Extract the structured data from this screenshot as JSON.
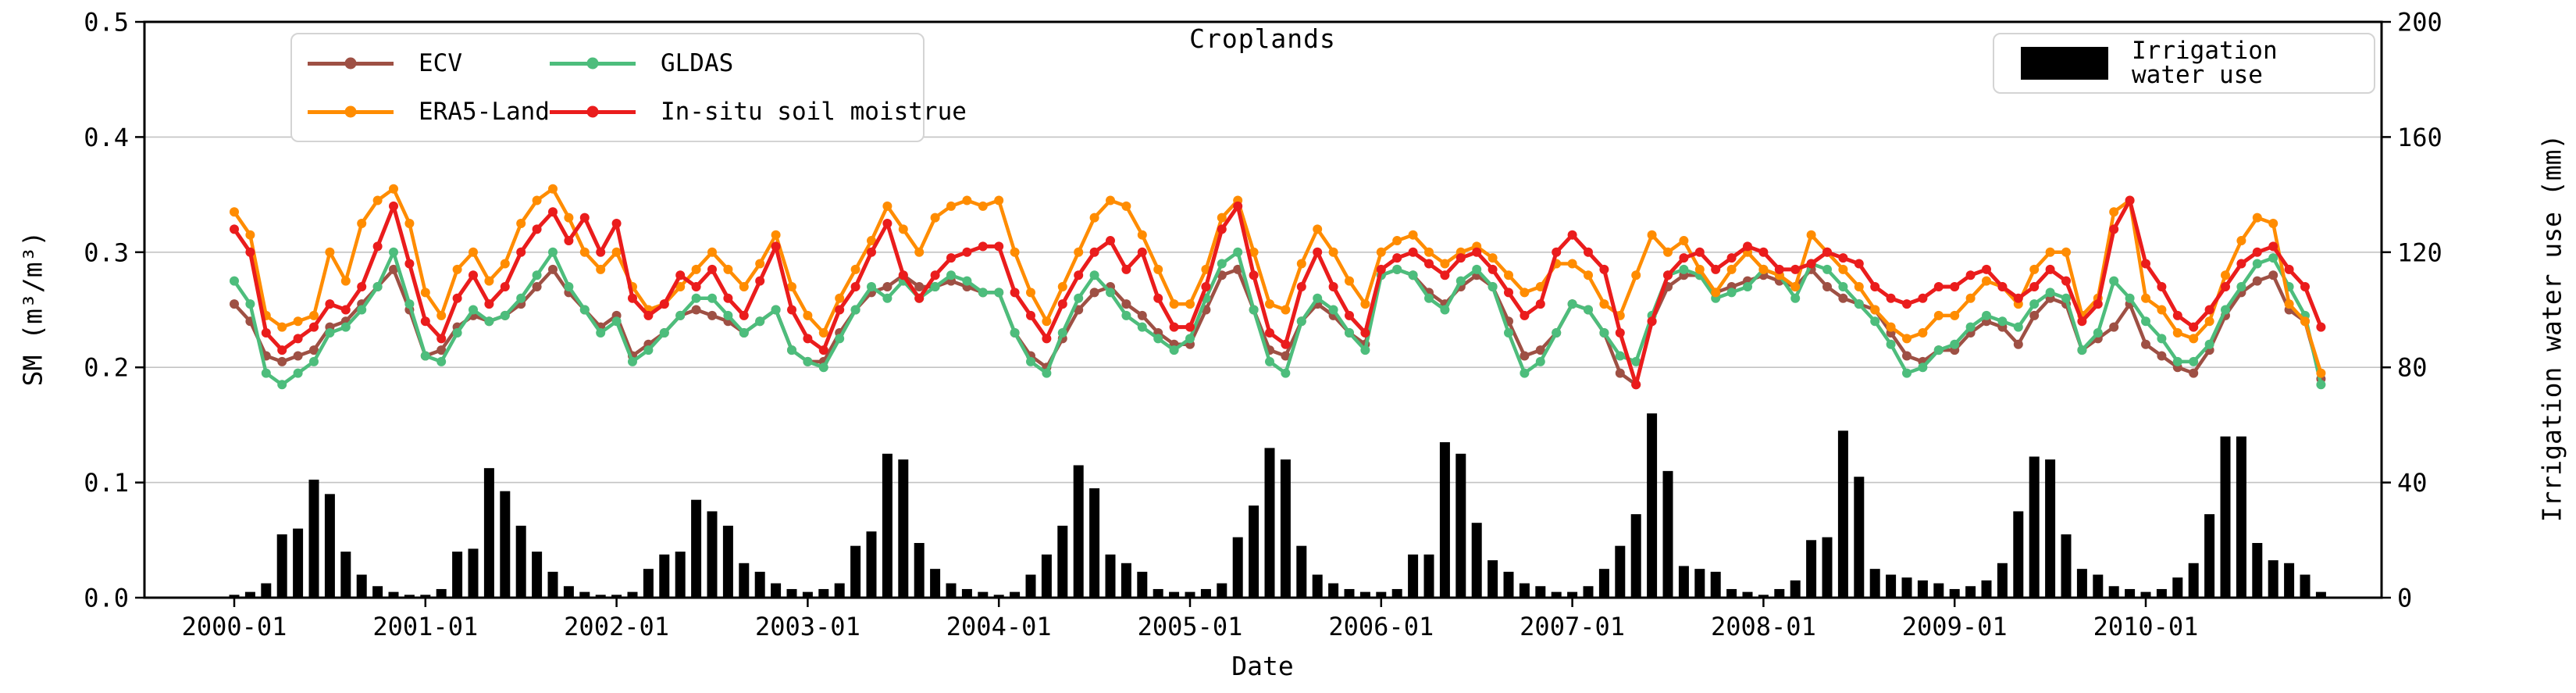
{
  "chart_data": {
    "type": "line+bar",
    "title": "Croplands",
    "x_label": "Date",
    "y_left": {
      "label": "SM (m³/m³)",
      "min": 0.0,
      "max": 0.5,
      "ticks": [
        0.0,
        0.1,
        0.2,
        0.3,
        0.4,
        0.5
      ],
      "tick_labels": [
        "0.0",
        "0.1",
        "0.2",
        "0.3",
        "0.4",
        "0.5"
      ]
    },
    "y_right": {
      "label": "Irrigation water use (mm)",
      "min": 0,
      "max": 200,
      "ticks": [
        0,
        40,
        80,
        120,
        160,
        200
      ],
      "tick_labels": [
        "0",
        "40",
        "80",
        "120",
        "160",
        "200"
      ]
    },
    "x_ticks": {
      "months": [
        0,
        12,
        24,
        36,
        48,
        60,
        72,
        84,
        96,
        108,
        120
      ],
      "labels": [
        "2000-01",
        "2001-01",
        "2002-01",
        "2003-01",
        "2004-01",
        "2005-01",
        "2006-01",
        "2007-01",
        "2008-01",
        "2009-01",
        "2010-01"
      ]
    },
    "n_months": 132,
    "grid": "horizontal",
    "series": [
      {
        "name": "ECV",
        "color": "#9e5044",
        "values": [
          0.255,
          0.24,
          0.21,
          0.205,
          0.21,
          0.215,
          0.235,
          0.24,
          0.255,
          0.27,
          0.285,
          0.25,
          0.21,
          0.215,
          0.235,
          0.245,
          0.24,
          0.245,
          0.255,
          0.27,
          0.285,
          0.265,
          0.25,
          0.235,
          0.245,
          0.21,
          0.22,
          0.23,
          0.245,
          0.25,
          0.245,
          0.24,
          0.23,
          0.24,
          0.25,
          0.215,
          0.205,
          0.205,
          0.23,
          0.25,
          0.265,
          0.27,
          0.28,
          0.27,
          0.27,
          0.275,
          0.27,
          0.265,
          0.265,
          0.23,
          0.21,
          0.2,
          0.225,
          0.25,
          0.265,
          0.27,
          0.255,
          0.245,
          0.23,
          0.22,
          0.22,
          0.25,
          0.28,
          0.285,
          0.25,
          0.215,
          0.21,
          0.24,
          0.255,
          0.245,
          0.23,
          0.22,
          0.28,
          0.285,
          0.28,
          0.265,
          0.255,
          0.27,
          0.28,
          0.27,
          0.24,
          0.21,
          0.215,
          0.23,
          0.255,
          0.25,
          0.23,
          0.195,
          0.185,
          0.24,
          0.27,
          0.28,
          0.28,
          0.265,
          0.27,
          0.275,
          0.28,
          0.275,
          0.27,
          0.285,
          0.27,
          0.26,
          0.255,
          0.25,
          0.23,
          0.21,
          0.205,
          0.215,
          0.215,
          0.23,
          0.24,
          0.235,
          0.22,
          0.245,
          0.26,
          0.255,
          0.215,
          0.225,
          0.235,
          0.255,
          0.22,
          0.21,
          0.2,
          0.195,
          0.215,
          0.245,
          0.265,
          0.275,
          0.28,
          0.25,
          0.24,
          0.19
        ]
      },
      {
        "name": "ERA5-Land",
        "color": "#ff8c00",
        "values": [
          0.335,
          0.315,
          0.245,
          0.235,
          0.24,
          0.245,
          0.3,
          0.275,
          0.325,
          0.345,
          0.355,
          0.325,
          0.265,
          0.245,
          0.285,
          0.3,
          0.275,
          0.29,
          0.325,
          0.345,
          0.355,
          0.33,
          0.3,
          0.285,
          0.3,
          0.27,
          0.25,
          0.255,
          0.27,
          0.285,
          0.3,
          0.285,
          0.27,
          0.29,
          0.315,
          0.27,
          0.245,
          0.23,
          0.26,
          0.285,
          0.31,
          0.34,
          0.32,
          0.3,
          0.33,
          0.34,
          0.345,
          0.34,
          0.345,
          0.3,
          0.265,
          0.24,
          0.27,
          0.3,
          0.33,
          0.345,
          0.34,
          0.315,
          0.285,
          0.255,
          0.255,
          0.285,
          0.33,
          0.345,
          0.3,
          0.255,
          0.25,
          0.29,
          0.32,
          0.3,
          0.275,
          0.255,
          0.3,
          0.31,
          0.315,
          0.3,
          0.29,
          0.3,
          0.305,
          0.295,
          0.28,
          0.265,
          0.27,
          0.29,
          0.29,
          0.28,
          0.255,
          0.245,
          0.28,
          0.315,
          0.3,
          0.31,
          0.285,
          0.265,
          0.285,
          0.3,
          0.285,
          0.28,
          0.27,
          0.315,
          0.3,
          0.285,
          0.27,
          0.25,
          0.235,
          0.225,
          0.23,
          0.245,
          0.245,
          0.26,
          0.275,
          0.27,
          0.255,
          0.285,
          0.3,
          0.3,
          0.245,
          0.26,
          0.335,
          0.345,
          0.26,
          0.25,
          0.23,
          0.225,
          0.24,
          0.28,
          0.31,
          0.33,
          0.325,
          0.255,
          0.24,
          0.195
        ]
      },
      {
        "name": "GLDAS",
        "color": "#4dbd7c",
        "values": [
          0.275,
          0.255,
          0.195,
          0.185,
          0.195,
          0.205,
          0.23,
          0.235,
          0.25,
          0.27,
          0.3,
          0.255,
          0.21,
          0.205,
          0.23,
          0.25,
          0.24,
          0.245,
          0.26,
          0.28,
          0.3,
          0.27,
          0.25,
          0.23,
          0.24,
          0.205,
          0.215,
          0.23,
          0.245,
          0.26,
          0.26,
          0.245,
          0.23,
          0.24,
          0.25,
          0.215,
          0.205,
          0.2,
          0.225,
          0.25,
          0.27,
          0.26,
          0.275,
          0.26,
          0.27,
          0.28,
          0.275,
          0.265,
          0.265,
          0.23,
          0.205,
          0.195,
          0.23,
          0.26,
          0.28,
          0.265,
          0.245,
          0.235,
          0.225,
          0.215,
          0.225,
          0.26,
          0.29,
          0.3,
          0.25,
          0.205,
          0.195,
          0.24,
          0.26,
          0.25,
          0.23,
          0.215,
          0.28,
          0.285,
          0.28,
          0.26,
          0.25,
          0.275,
          0.285,
          0.27,
          0.23,
          0.195,
          0.205,
          0.23,
          0.255,
          0.25,
          0.23,
          0.21,
          0.205,
          0.245,
          0.28,
          0.285,
          0.28,
          0.26,
          0.265,
          0.27,
          0.285,
          0.28,
          0.26,
          0.29,
          0.285,
          0.27,
          0.255,
          0.24,
          0.22,
          0.195,
          0.2,
          0.215,
          0.22,
          0.235,
          0.245,
          0.24,
          0.235,
          0.255,
          0.265,
          0.26,
          0.215,
          0.23,
          0.275,
          0.26,
          0.24,
          0.225,
          0.205,
          0.205,
          0.22,
          0.25,
          0.27,
          0.29,
          0.295,
          0.27,
          0.245,
          0.185
        ]
      },
      {
        "name": "In-situ soil moistrue",
        "color": "#ea1c1c",
        "values": [
          0.32,
          0.3,
          0.23,
          0.215,
          0.225,
          0.235,
          0.255,
          0.25,
          0.27,
          0.305,
          0.34,
          0.29,
          0.24,
          0.225,
          0.26,
          0.28,
          0.255,
          0.27,
          0.3,
          0.32,
          0.335,
          0.31,
          0.33,
          0.3,
          0.325,
          0.26,
          0.245,
          0.255,
          0.28,
          0.27,
          0.285,
          0.26,
          0.245,
          0.275,
          0.305,
          0.25,
          0.225,
          0.215,
          0.25,
          0.27,
          0.3,
          0.325,
          0.28,
          0.26,
          0.28,
          0.295,
          0.3,
          0.305,
          0.305,
          0.265,
          0.245,
          0.225,
          0.255,
          0.28,
          0.3,
          0.31,
          0.285,
          0.3,
          0.26,
          0.235,
          0.235,
          0.27,
          0.32,
          0.34,
          0.28,
          0.23,
          0.22,
          0.27,
          0.3,
          0.27,
          0.245,
          0.23,
          0.285,
          0.295,
          0.3,
          0.29,
          0.28,
          0.295,
          0.3,
          0.285,
          0.265,
          0.245,
          0.255,
          0.3,
          0.315,
          0.3,
          0.285,
          0.23,
          0.185,
          0.24,
          0.28,
          0.295,
          0.3,
          0.285,
          0.295,
          0.305,
          0.3,
          0.285,
          0.285,
          0.29,
          0.3,
          0.295,
          0.29,
          0.27,
          0.26,
          0.255,
          0.26,
          0.27,
          0.27,
          0.28,
          0.285,
          0.27,
          0.26,
          0.27,
          0.285,
          0.275,
          0.24,
          0.255,
          0.32,
          0.345,
          0.29,
          0.27,
          0.245,
          0.235,
          0.25,
          0.27,
          0.29,
          0.3,
          0.305,
          0.285,
          0.27,
          0.235
        ]
      }
    ],
    "bars": {
      "name": "Irrigation water use",
      "color": "#000000",
      "axis": "right",
      "values": [
        1,
        2,
        5,
        22,
        24,
        41,
        36,
        16,
        8,
        4,
        2,
        1,
        1,
        3,
        16,
        17,
        45,
        37,
        25,
        16,
        9,
        4,
        2,
        1,
        1,
        2,
        10,
        15,
        16,
        34,
        30,
        25,
        12,
        9,
        5,
        3,
        2,
        3,
        5,
        18,
        23,
        50,
        48,
        19,
        10,
        5,
        3,
        2,
        1,
        2,
        8,
        15,
        25,
        46,
        38,
        15,
        12,
        9,
        3,
        2,
        2,
        3,
        5,
        21,
        32,
        52,
        48,
        18,
        8,
        5,
        3,
        2,
        2,
        3,
        15,
        15,
        54,
        50,
        26,
        13,
        9,
        5,
        4,
        2,
        2,
        4,
        10,
        18,
        29,
        64,
        44,
        11,
        10,
        9,
        3,
        2,
        1,
        3,
        6,
        20,
        21,
        58,
        42,
        10,
        8,
        7,
        6,
        5,
        3,
        4,
        6,
        12,
        30,
        49,
        48,
        22,
        10,
        8,
        4,
        3,
        2,
        3,
        7,
        12,
        29,
        56,
        56,
        19,
        13,
        12,
        8,
        2
      ]
    }
  }
}
